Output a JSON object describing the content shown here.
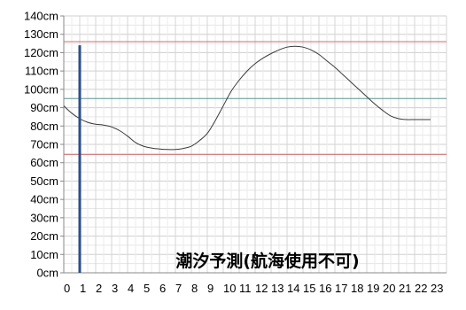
{
  "chart_data": {
    "type": "line",
    "title": "潮汐予測(航海使用不可)",
    "xlabel": "",
    "ylabel": "",
    "x_ticks": [
      "0",
      "1",
      "2",
      "3",
      "4",
      "5",
      "6",
      "7",
      "8",
      "9",
      "10",
      "11",
      "12",
      "13",
      "14",
      "15",
      "16",
      "17",
      "18",
      "19",
      "20",
      "21",
      "22",
      "23"
    ],
    "y_ticks": [
      "0cm",
      "10cm",
      "20cm",
      "30cm",
      "40cm",
      "50cm",
      "60cm",
      "70cm",
      "80cm",
      "90cm",
      "100cm",
      "110cm",
      "120cm",
      "130cm",
      "140cm"
    ],
    "xlim": [
      0,
      24
    ],
    "ylim": [
      0,
      140
    ],
    "grid": true,
    "series": [
      {
        "values": [
          [
            0,
            91
          ],
          [
            0.5,
            87
          ],
          [
            1,
            84
          ],
          [
            1.5,
            82
          ],
          [
            2,
            81
          ],
          [
            2.5,
            80.5
          ],
          [
            3,
            79.5
          ],
          [
            3.5,
            77.5
          ],
          [
            4,
            74.5
          ],
          [
            4.5,
            71
          ],
          [
            5,
            69
          ],
          [
            5.5,
            68
          ],
          [
            6,
            67.5
          ],
          [
            6.5,
            67.2
          ],
          [
            7,
            67.2
          ],
          [
            7.5,
            67.8
          ],
          [
            8,
            69
          ],
          [
            8.5,
            72
          ],
          [
            9,
            76
          ],
          [
            9.5,
            83
          ],
          [
            10,
            91
          ],
          [
            10.5,
            99
          ],
          [
            11,
            105
          ],
          [
            11.5,
            110
          ],
          [
            12,
            114
          ],
          [
            12.5,
            117
          ],
          [
            13,
            119.5
          ],
          [
            13.5,
            121.5
          ],
          [
            14,
            123
          ],
          [
            14.5,
            123.5
          ],
          [
            15,
            123
          ],
          [
            15.5,
            121.5
          ],
          [
            16,
            119
          ],
          [
            16.5,
            115.5
          ],
          [
            17,
            112
          ],
          [
            17.5,
            108
          ],
          [
            18,
            104
          ],
          [
            18.5,
            100
          ],
          [
            19,
            96
          ],
          [
            19.5,
            92
          ],
          [
            20,
            88.5
          ],
          [
            20.5,
            85.5
          ],
          [
            21,
            84
          ],
          [
            21.5,
            83.5
          ],
          [
            22,
            83.5
          ],
          [
            23,
            83.5
          ]
        ],
        "color": "#3a3a3a"
      }
    ],
    "reference_lines": [
      {
        "y": 126,
        "color": "#d07070"
      },
      {
        "y": 64.5,
        "color": "#d07070"
      },
      {
        "y": 95,
        "color": "#5a9a9a"
      }
    ],
    "current_time_marker": {
      "x": 1,
      "y_top": 124,
      "color": "#2c4f8a"
    }
  }
}
